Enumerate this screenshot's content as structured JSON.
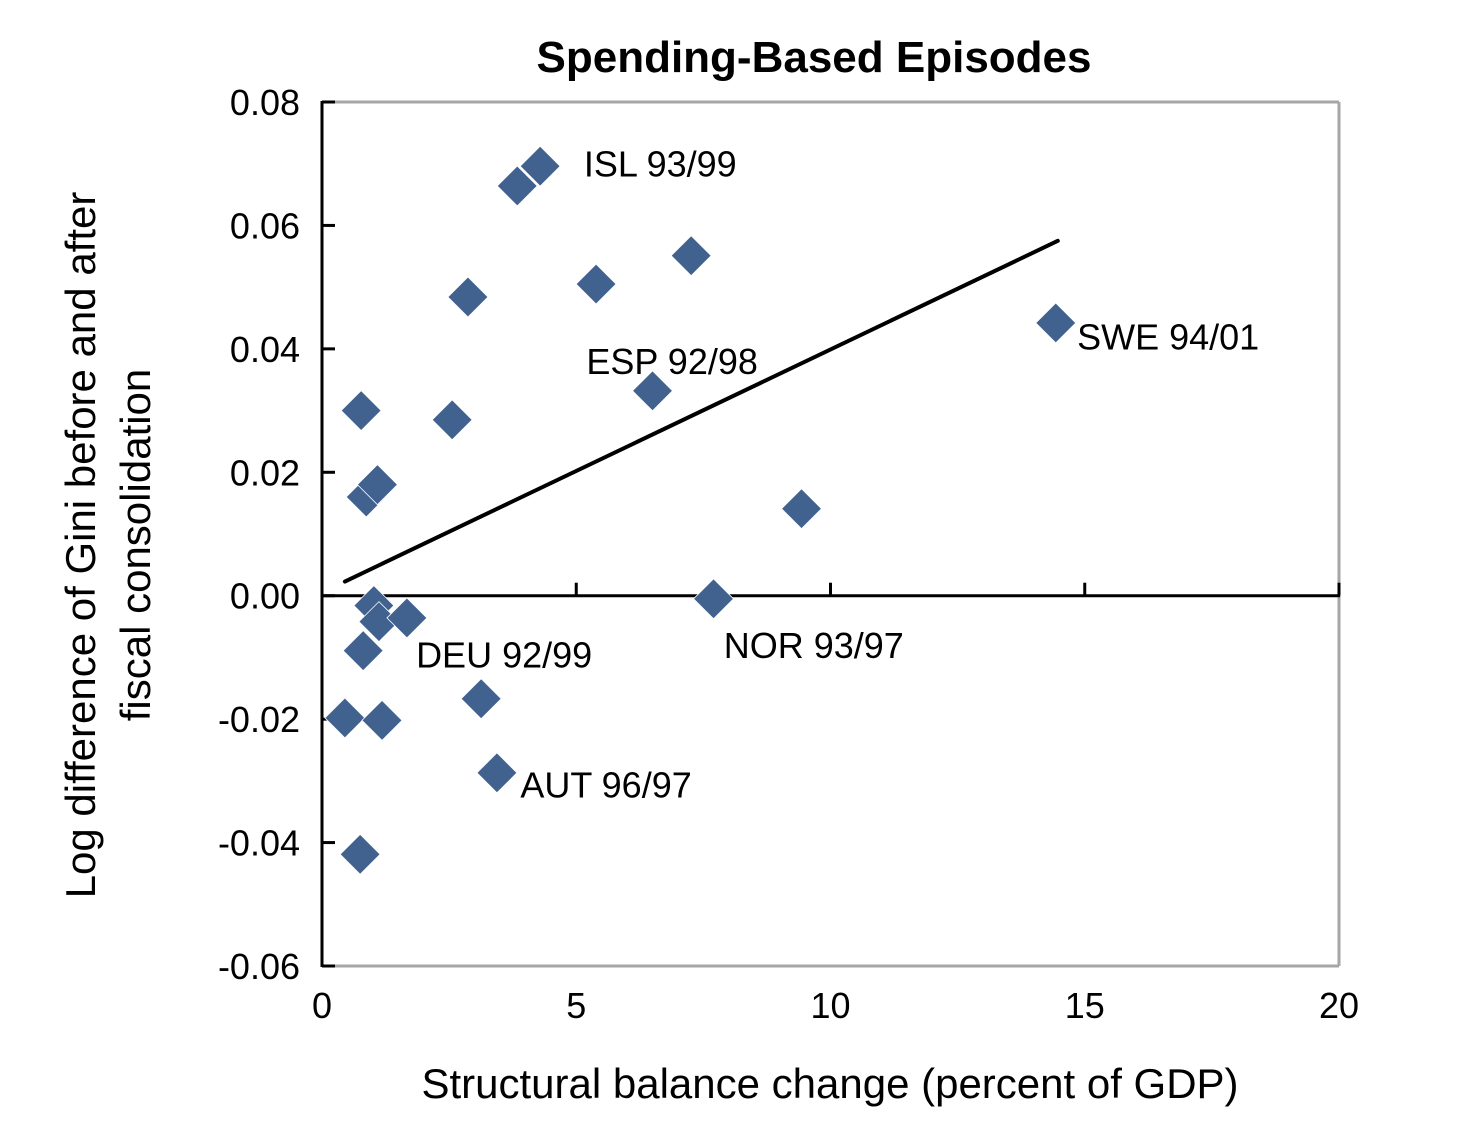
{
  "chart_data": {
    "type": "scatter",
    "title": "Spending-Based Episodes",
    "xlabel": "Structural balance change (percent of GDP)",
    "ylabel_lines": [
      "Log difference of Gini before and after",
      "fiscal consolidation"
    ],
    "xlim": [
      0,
      20
    ],
    "ylim": [
      -0.06,
      0.08
    ],
    "xticks": [
      0,
      5,
      10,
      15,
      20
    ],
    "xtick_labels": [
      "0",
      "5",
      "10",
      "15",
      "20"
    ],
    "yticks": [
      -0.06,
      -0.04,
      -0.02,
      0.0,
      0.02,
      0.04,
      0.06,
      0.08
    ],
    "ytick_labels": [
      "-0.06",
      "-0.04",
      "-0.02",
      "0.00",
      "0.02",
      "0.04",
      "0.06",
      "0.08"
    ],
    "grid": false,
    "marker": "diamond",
    "marker_color": "#41628F",
    "frame_color": "#A6A6A6",
    "points": [
      {
        "x": 3.84,
        "y": 0.0664,
        "label": ""
      },
      {
        "x": 4.29,
        "y": 0.0696,
        "label": "ISL 93/99"
      },
      {
        "x": 2.87,
        "y": 0.0484,
        "label": ""
      },
      {
        "x": 5.39,
        "y": 0.0505,
        "label": ""
      },
      {
        "x": 7.26,
        "y": 0.0551,
        "label": ""
      },
      {
        "x": 14.43,
        "y": 0.0442,
        "label": "SWE 94/01"
      },
      {
        "x": 6.5,
        "y": 0.0332,
        "label": "ESP 92/98"
      },
      {
        "x": 0.77,
        "y": 0.03,
        "label": ""
      },
      {
        "x": 2.56,
        "y": 0.0285,
        "label": ""
      },
      {
        "x": 0.87,
        "y": 0.016,
        "label": ""
      },
      {
        "x": 1.09,
        "y": 0.018,
        "label": ""
      },
      {
        "x": 9.43,
        "y": 0.0141,
        "label": ""
      },
      {
        "x": 7.7,
        "y": -0.0005,
        "label": "NOR 93/97"
      },
      {
        "x": 1.02,
        "y": -0.0016,
        "label": ""
      },
      {
        "x": 1.12,
        "y": -0.0042,
        "label": ""
      },
      {
        "x": 1.67,
        "y": -0.0036,
        "label": "DEU 92/99"
      },
      {
        "x": 0.81,
        "y": -0.0089,
        "label": ""
      },
      {
        "x": 3.13,
        "y": -0.0167,
        "label": ""
      },
      {
        "x": 0.45,
        "y": -0.0198,
        "label": ""
      },
      {
        "x": 1.18,
        "y": -0.0202,
        "label": ""
      },
      {
        "x": 3.44,
        "y": -0.0287,
        "label": "AUT 96/97"
      },
      {
        "x": 0.75,
        "y": -0.0419,
        "label": ""
      }
    ],
    "trendline": {
      "x": [
        0.45,
        14.47
      ],
      "y": [
        0.0023,
        0.0575
      ]
    },
    "annotations": [
      {
        "text": "ISL 93/99",
        "x": 5.15,
        "y": 0.07,
        "anchor": "start"
      },
      {
        "text": "ESP 92/98",
        "x": 5.2,
        "y": 0.038,
        "anchor": "start"
      },
      {
        "text": "SWE 94/01",
        "x": 14.85,
        "y": 0.042,
        "anchor": "start"
      },
      {
        "text": "DEU 92/99",
        "x": 1.85,
        "y": -0.0095,
        "anchor": "start"
      },
      {
        "text": "NOR 93/97",
        "x": 7.9,
        "y": -0.008,
        "anchor": "start"
      },
      {
        "text": "AUT 96/97",
        "x": 3.9,
        "y": -0.0306,
        "anchor": "start"
      }
    ]
  }
}
